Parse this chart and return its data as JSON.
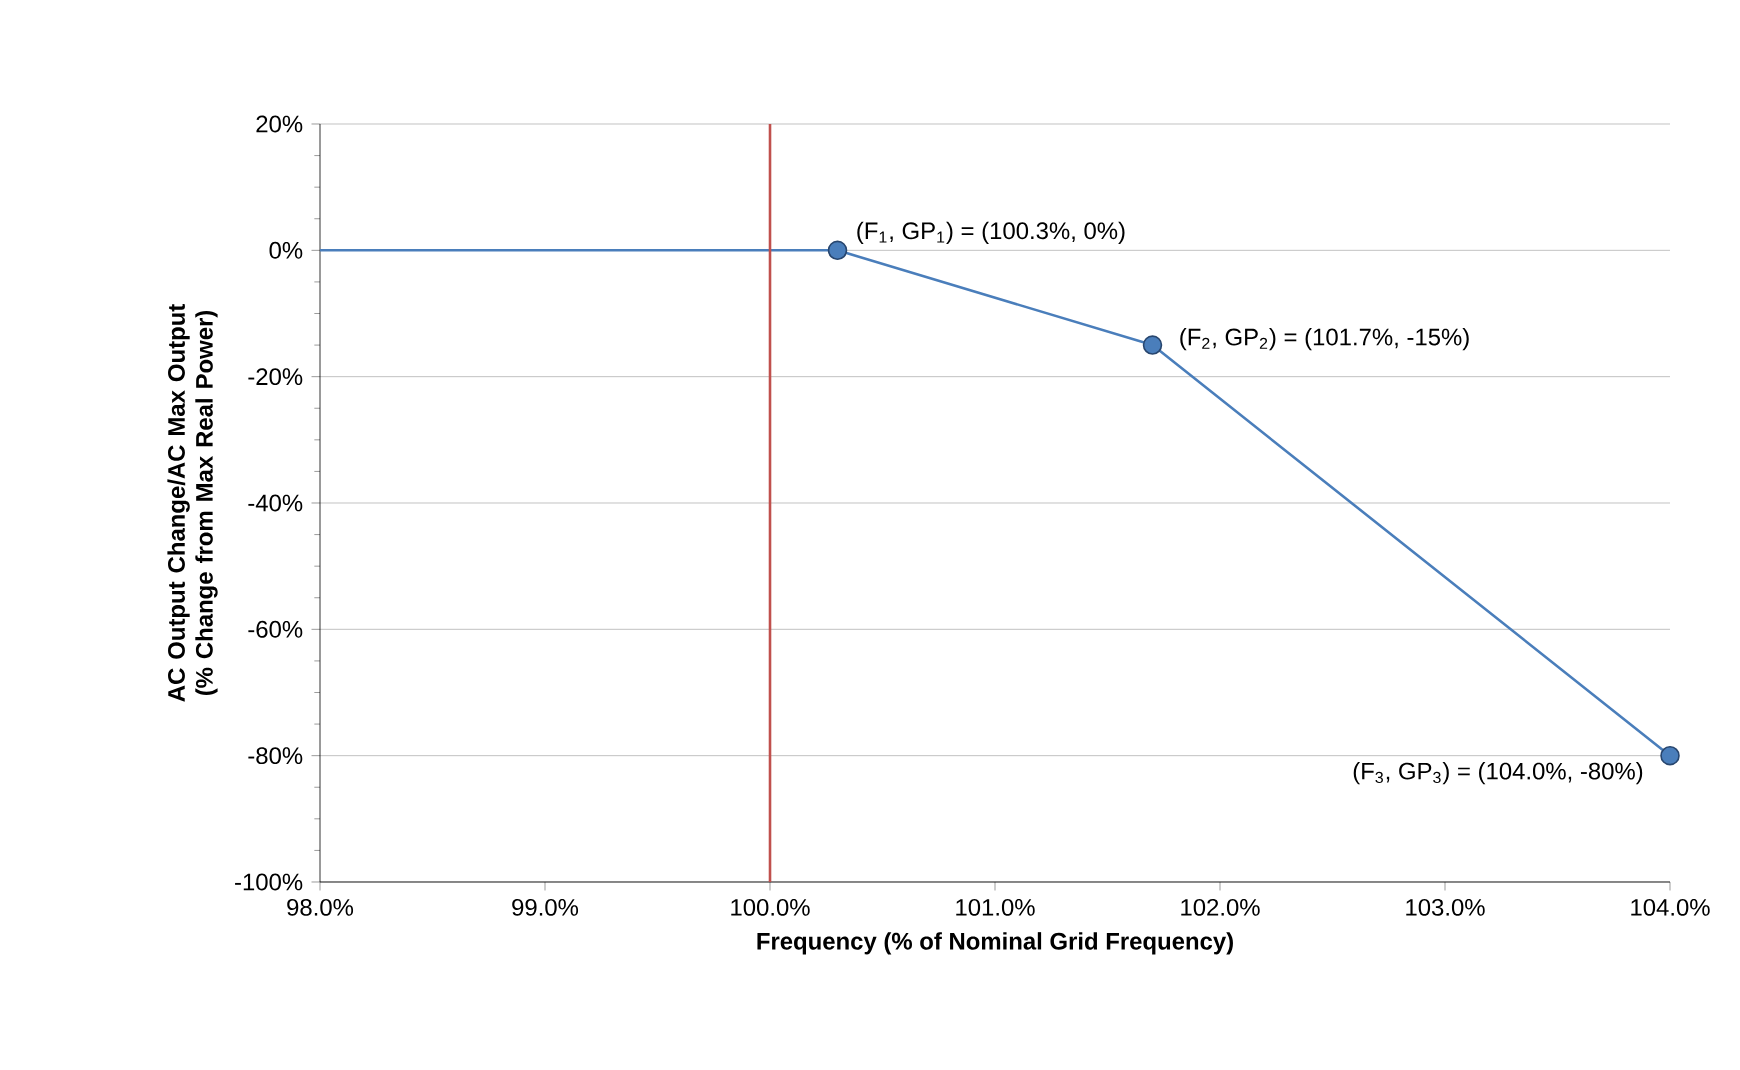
{
  "chart_data": {
    "type": "line",
    "xlabel": "Frequency (% of Nominal Grid Frequency)",
    "ylabel": "AC Output Change/AC Max Output (% Change from Max Real Power)",
    "series": [
      {
        "x": [
          98,
          100.3
        ],
        "values": [
          0,
          0
        ],
        "color": "#4a7ebb"
      },
      {
        "x": [
          100.3,
          101.7,
          104
        ],
        "values": [
          0,
          -15,
          -80
        ],
        "color": "#4a7ebb",
        "marker": "circle"
      }
    ],
    "xlim": [
      98,
      104
    ],
    "ylim": [
      -100,
      20
    ],
    "xticks": [
      {
        "value": 98,
        "label": "98.0%"
      },
      {
        "value": 99,
        "label": "99.0%"
      },
      {
        "value": 100,
        "label": "100.0%"
      },
      {
        "value": 101,
        "label": "101.0%"
      },
      {
        "value": 102,
        "label": "102.0%"
      },
      {
        "value": 103,
        "label": "103.0%"
      },
      {
        "value": 104,
        "label": "104.0%"
      }
    ],
    "yticks": [
      {
        "value": -100,
        "label": "-100%"
      },
      {
        "value": -80,
        "label": "-80%"
      },
      {
        "value": -60,
        "label": "-60%"
      },
      {
        "value": -40,
        "label": "-40%"
      },
      {
        "value": -20,
        "label": "-20%"
      },
      {
        "value": 0,
        "label": "0%"
      },
      {
        "value": 20,
        "label": "20%"
      }
    ],
    "grid": "y",
    "ref_lines": [
      {
        "axis": "x",
        "value": 100,
        "color": "#c0504d"
      }
    ],
    "annotations": [
      {
        "text": "(F$_{1}$, GP$_{1}$) = (100.3%, 0%)",
        "x": 100.3,
        "y": 0
      },
      {
        "text": "(F$_{2}$, GP$_{2}$) = (101.7%, -15%)",
        "x": 101.7,
        "y": -15
      },
      {
        "text": "(F$_{3}$, GP$_{3}$) = (104.0%, -80%)",
        "x": 104,
        "y": -80
      }
    ]
  }
}
